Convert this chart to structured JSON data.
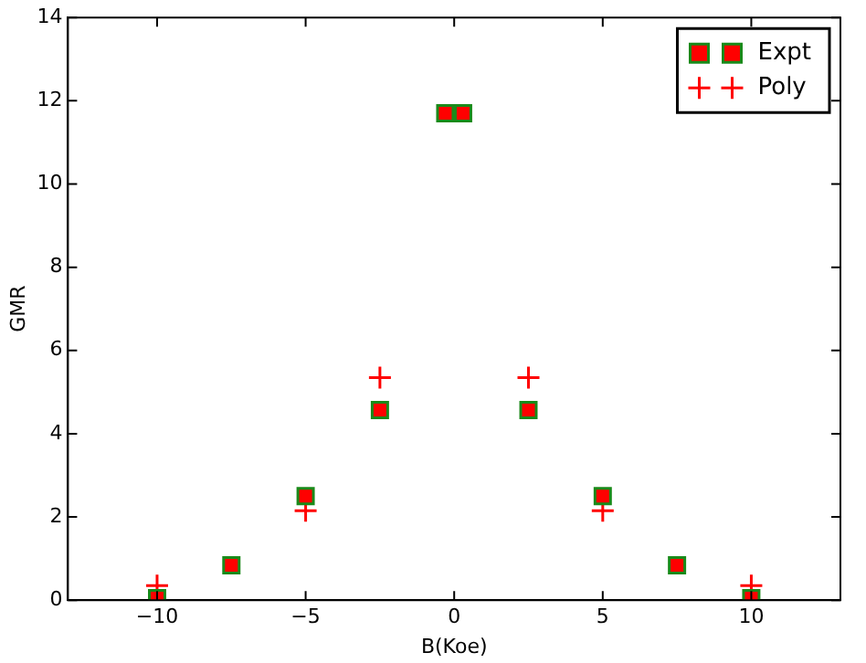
{
  "chart_data": {
    "type": "scatter",
    "xlabel": "B(Koe)",
    "ylabel": "GMR",
    "xlim": [
      -13,
      13
    ],
    "xticks": [
      -10,
      -5,
      0,
      5,
      10
    ],
    "ylim": [
      0,
      14
    ],
    "yticks": [
      0,
      2,
      4,
      6,
      8,
      10,
      12,
      14
    ],
    "grid": false,
    "legend": "top right",
    "series": [
      {
        "name": "Expt",
        "color": "#ff0000",
        "marker": "square",
        "x": [
          -10,
          -7.5,
          -5,
          -2.5,
          -0.3,
          0.3,
          2.5,
          5,
          7.5,
          10
        ],
        "values": [
          0.05,
          0.84,
          2.5,
          4.57,
          11.7,
          11.7,
          4.57,
          2.5,
          0.84,
          0.05
        ]
      },
      {
        "name": "Poly",
        "color": "#ff0000",
        "marker": "cross",
        "x": [
          -10,
          -5,
          -2.5,
          2.5,
          5,
          10
        ],
        "values": [
          0.35,
          2.15,
          5.35,
          5.35,
          2.15,
          0.35
        ]
      }
    ]
  }
}
